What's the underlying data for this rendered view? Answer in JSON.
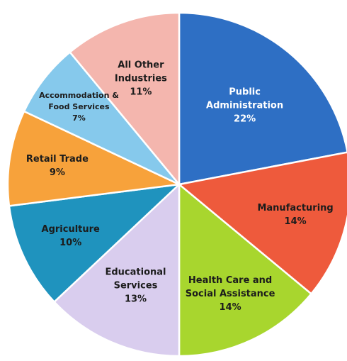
{
  "chart_data": {
    "type": "pie",
    "start_angle_deg": 0,
    "direction": "clockwise",
    "slices": [
      {
        "label_lines": [
          "Public",
          "Administration"
        ],
        "pct_label": "22%",
        "value": 22,
        "color": "#2e6fc4",
        "text_color": "#ffffff"
      },
      {
        "label_lines": [
          "Manufacturing"
        ],
        "pct_label": "14%",
        "value": 14,
        "color": "#ee5a3c",
        "text_color": "#1c1c1c"
      },
      {
        "label_lines": [
          "Health Care and",
          "Social Assistance"
        ],
        "pct_label": "14%",
        "value": 14,
        "color": "#a8d62e",
        "text_color": "#1c1c1c"
      },
      {
        "label_lines": [
          "Educational",
          "Services"
        ],
        "pct_label": "13%",
        "value": 13,
        "color": "#d9cdee",
        "text_color": "#1c1c1c"
      },
      {
        "label_lines": [
          "Agriculture"
        ],
        "pct_label": "10%",
        "value": 10,
        "color": "#1f93be",
        "text_color": "#1c1c1c"
      },
      {
        "label_lines": [
          "Retail Trade"
        ],
        "pct_label": "9%",
        "value": 9,
        "color": "#f7a23b",
        "text_color": "#1c1c1c"
      },
      {
        "label_lines": [
          "Accommodation &",
          "Food Services"
        ],
        "pct_label": "7%",
        "value": 7,
        "color": "#86c9ec",
        "text_color": "#1c1c1c"
      },
      {
        "label_lines": [
          "All Other",
          "Industries"
        ],
        "pct_label": "11%",
        "value": 11,
        "color": "#f4b6ae",
        "text_color": "#1c1c1c"
      }
    ]
  }
}
